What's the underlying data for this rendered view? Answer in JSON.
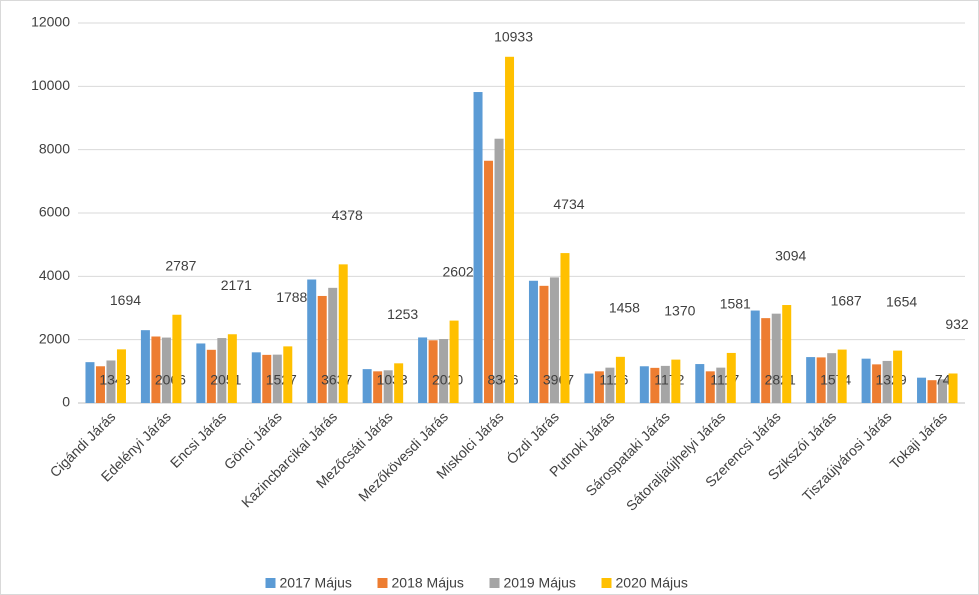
{
  "chart_data": {
    "type": "bar",
    "categories": [
      "Cigándi Járás",
      "Edelényi Járás",
      "Encsi Járás",
      "Gönci Járás",
      "Kazincbarcikai Járás",
      "Mezőcsáti Járás",
      "Mezőkövesdi Járás",
      "Miskolci Járás",
      "Ózdi Járás",
      "Putnoki Járás",
      "Sárospataki Járás",
      "Sátoraljaújhelyi Járás",
      "Szerencsi Járás",
      "Szikszói Járás",
      "Tiszaújvárosi Járás",
      "Tokaji Járás"
    ],
    "series": [
      {
        "name": "2017 Május",
        "color": "#5b9bd5",
        "show_labels": false,
        "values": [
          1290,
          2300,
          1880,
          1600,
          3900,
          1070,
          2070,
          9820,
          3860,
          930,
          1160,
          1230,
          2920,
          1450,
          1400,
          800
        ]
      },
      {
        "name": "2018 Május",
        "color": "#ed7d31",
        "show_labels": false,
        "values": [
          1160,
          2100,
          1680,
          1520,
          3380,
          1000,
          1980,
          7650,
          3700,
          1000,
          1110,
          1000,
          2680,
          1440,
          1220,
          720
        ]
      },
      {
        "name": "2019 Május",
        "color": "#a5a5a5",
        "show_labels": true,
        "label_position": "base",
        "values": [
          1343,
          2066,
          2051,
          1527,
          3637,
          1033,
          2020,
          8346,
          3967,
          1116,
          1172,
          1117,
          2821,
          1574,
          1329,
          749
        ]
      },
      {
        "name": "2020 Május",
        "color": "#ffc000",
        "show_labels": true,
        "label_position": "above",
        "values": [
          1694,
          2787,
          2171,
          1788,
          4378,
          1253,
          2602,
          10933,
          4734,
          1458,
          1370,
          1581,
          3094,
          1687,
          1654,
          932
        ]
      }
    ],
    "ylim": [
      0,
      12000
    ],
    "yticks": [
      0,
      2000,
      4000,
      6000,
      8000,
      10000,
      12000
    ],
    "grid": true,
    "legend": "bottom"
  }
}
